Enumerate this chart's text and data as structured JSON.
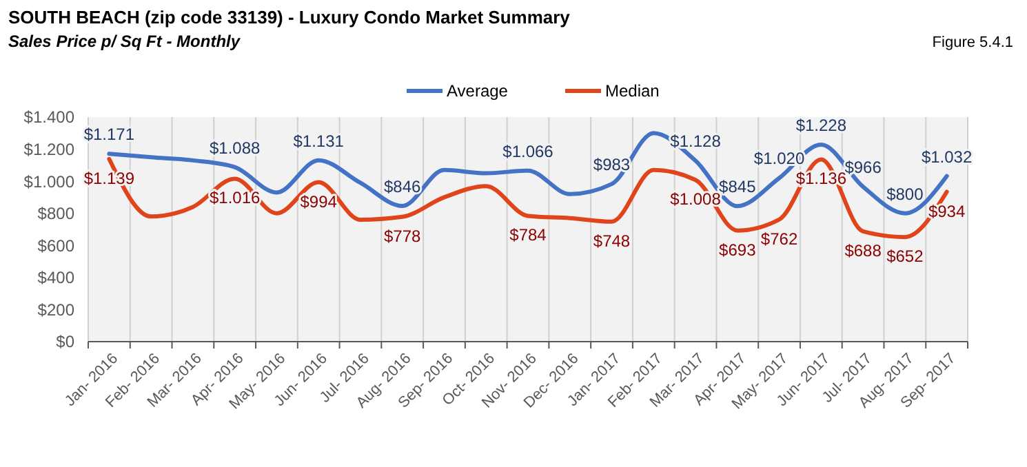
{
  "chart_data": {
    "type": "line",
    "title": "SOUTH BEACH (zip code 33139) - Luxury Condo Market Summary",
    "subtitle": "Sales Price  p/ Sq Ft - Monthly",
    "annotations": [
      "Figure 5.4.1"
    ],
    "categories": [
      "Jan- 2016",
      "Feb- 2016",
      "Mar- 2016",
      "Apr- 2016",
      "May- 2016",
      "Jun- 2016",
      "Jul- 2016",
      "Aug- 2016",
      "Sep- 2016",
      "Oct- 2016",
      "Nov- 2016",
      "Dec- 2016",
      "Jan- 2017",
      "Feb- 2017",
      "Mar- 2017",
      "Apr- 2017",
      "May- 2017",
      "Jun- 2017",
      "Jul- 2017",
      "Aug- 2017",
      "Sep- 2017"
    ],
    "series": [
      {
        "name": "Average",
        "color": "#4472c4",
        "values": [
          1171,
          1150,
          1130,
          1088,
          930,
          1131,
          990,
          846,
          1070,
          1050,
          1066,
          920,
          983,
          1300,
          1128,
          845,
          1020,
          1228,
          966,
          800,
          1032
        ],
        "value_labels": [
          "$1.171",
          null,
          null,
          "$1.088",
          null,
          "$1.131",
          null,
          "$846",
          null,
          null,
          "$1.066",
          null,
          "$983",
          null,
          "$1.128",
          "$845",
          "$1.020",
          "$1.228",
          "$966",
          "$800",
          "$1.032"
        ]
      },
      {
        "name": "Median",
        "color": "#e0441b",
        "values": [
          1139,
          780,
          840,
          1016,
          800,
          994,
          760,
          778,
          900,
          970,
          784,
          770,
          748,
          1070,
          1008,
          693,
          762,
          1136,
          688,
          652,
          934
        ],
        "value_labels": [
          "$1.139",
          null,
          null,
          "$1.016",
          null,
          "$994",
          null,
          "$778",
          null,
          null,
          "$784",
          null,
          "$748",
          null,
          "$1.008",
          "$693",
          "$762",
          "$1.136",
          "$688",
          "$652",
          "$934"
        ]
      }
    ],
    "ylim": [
      0,
      1400
    ],
    "yticks": [
      {
        "value": 0,
        "label": "$0"
      },
      {
        "value": 200,
        "label": "$200"
      },
      {
        "value": 400,
        "label": "$400"
      },
      {
        "value": 600,
        "label": "$600"
      },
      {
        "value": 800,
        "label": "$800"
      },
      {
        "value": 1000,
        "label": "$1.000"
      },
      {
        "value": 1200,
        "label": "$1.200"
      },
      {
        "value": 1400,
        "label": "$1.400"
      }
    ],
    "grid": "x",
    "legend": "top",
    "marker": "none",
    "line_style": "solid"
  }
}
